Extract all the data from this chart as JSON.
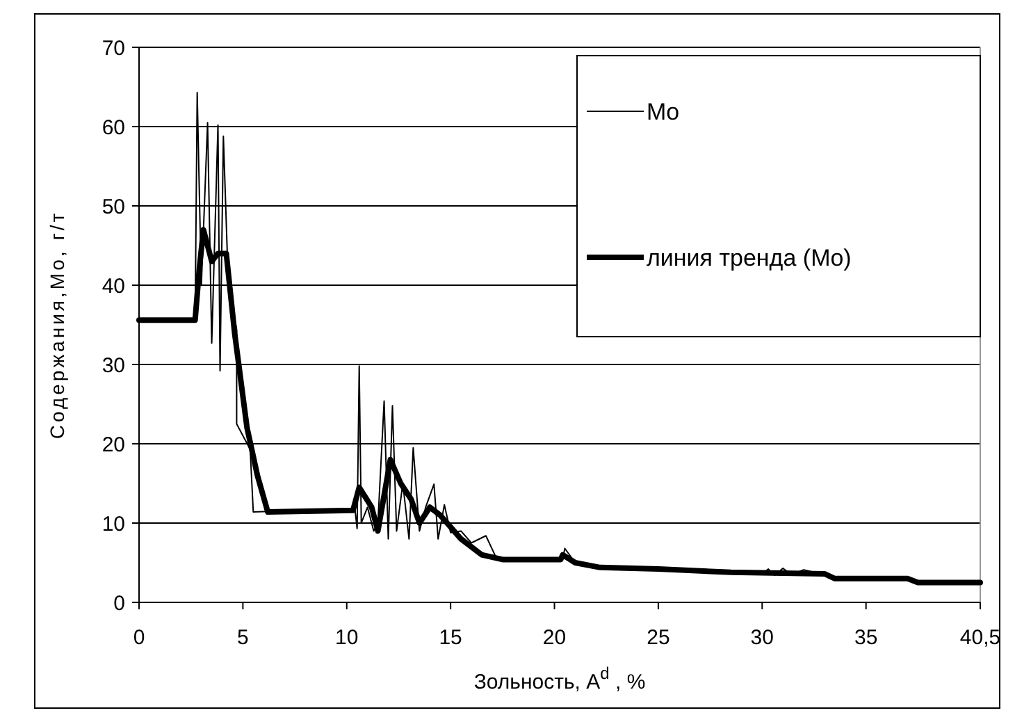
{
  "chart_data": {
    "type": "line",
    "xlabel": "Зольность, A$^{d}$ , %",
    "ylabel": "Содержания,Мо, г/т",
    "xlim": [
      0,
      40.5
    ],
    "xticks": [
      0,
      5,
      10,
      15,
      20,
      25,
      30,
      35,
      {
        "value": 40.5,
        "label": "40,5"
      }
    ],
    "ylim": [
      0,
      70
    ],
    "yticks": [
      0,
      10,
      20,
      30,
      40,
      50,
      60,
      70
    ],
    "grid": "y",
    "legend": "top right",
    "series": [
      {
        "name": "Mo",
        "color": "#000000",
        "x": [
          0,
          2.7,
          2.8,
          3.0,
          3.3,
          3.5,
          3.8,
          3.9,
          4.06,
          4.3,
          4.7,
          4.7,
          5.35,
          5.5,
          6.5,
          8,
          10.4,
          10.5,
          10.6,
          10.7,
          11.0,
          11.3,
          11.5,
          11.8,
          12.0,
          12.2,
          12.4,
          12.7,
          13.0,
          13.2,
          13.5,
          13.8,
          14.2,
          14.4,
          14.7,
          15.0,
          15.5,
          16.0,
          16.7,
          17.2,
          18,
          20.4,
          20.5,
          21,
          22.2,
          25,
          28.5,
          30,
          30.3,
          30.6,
          31,
          31.4,
          32,
          33,
          33.5,
          37,
          37.5,
          40.5
        ],
        "values": [
          35.6,
          35.6,
          64.3,
          40,
          60.5,
          32.7,
          60.2,
          29.2,
          58.8,
          40,
          34.4,
          22.5,
          19.3,
          11.4,
          11.5,
          11.6,
          11.6,
          9.3,
          29.8,
          10,
          12,
          9,
          10,
          25.4,
          8,
          24.8,
          9,
          15,
          8,
          19.5,
          9,
          12,
          14.9,
          8,
          12.3,
          8.8,
          9,
          7.5,
          8.4,
          5.6,
          5.4,
          5.5,
          6.8,
          5,
          4.4,
          4.2,
          3.8,
          3.6,
          4.2,
          3.4,
          4.3,
          3.5,
          4.1,
          3.5,
          3.0,
          3.0,
          2.5,
          2.5
        ]
      },
      {
        "name": "линия тренда (Mo)",
        "color": "#000000",
        "x": [
          0,
          2.7,
          2.9,
          3.1,
          3.5,
          3.8,
          4.2,
          4.6,
          5.2,
          5.7,
          6.2,
          8,
          10.3,
          10.6,
          11.2,
          11.5,
          12.1,
          12.6,
          13.1,
          13.5,
          14.0,
          14.5,
          15.5,
          16.5,
          17.5,
          20.3,
          20.4,
          21,
          22.2,
          25,
          28.5,
          33,
          33.5,
          37,
          37.5,
          40.5
        ],
        "values": [
          35.6,
          35.6,
          42,
          47,
          43,
          44,
          44,
          34,
          22,
          16,
          11.4,
          11.5,
          11.6,
          14.5,
          12,
          9,
          18,
          15,
          13,
          10,
          12,
          11,
          8,
          6,
          5.4,
          5.4,
          6,
          5,
          4.4,
          4.2,
          3.8,
          3.6,
          3.0,
          3.0,
          2.5,
          2.5
        ]
      }
    ]
  }
}
